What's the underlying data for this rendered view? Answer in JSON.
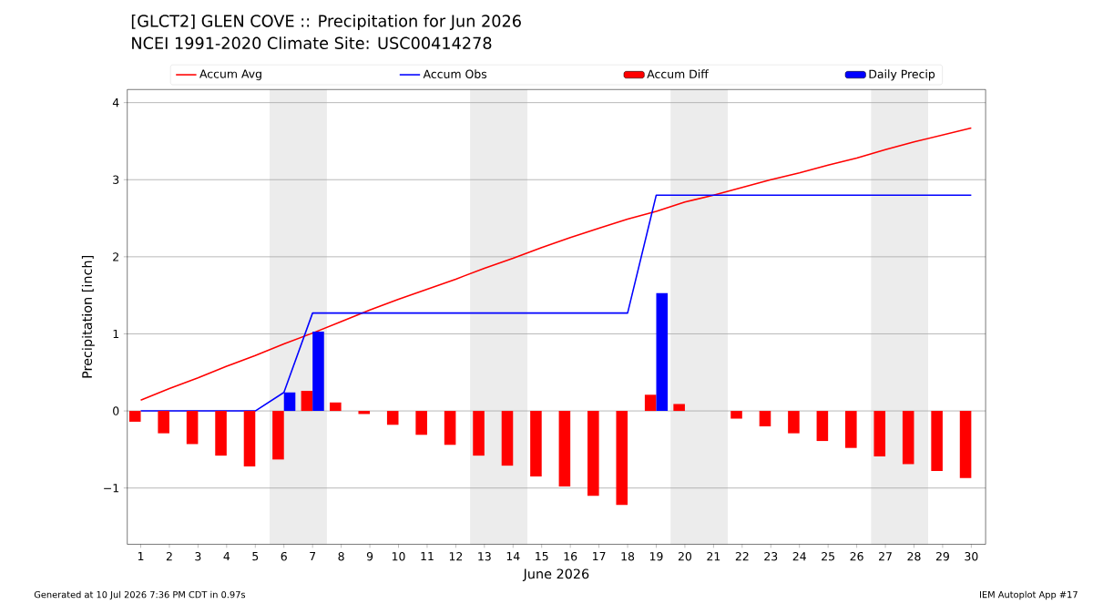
{
  "chart_data": {
    "type": "bar",
    "title": "[GLCT2] GLEN COVE :: Precipitation for Jun 2026",
    "subtitle": "NCEI 1991-2020 Climate Site: USC00414278",
    "xlabel": "June 2026",
    "ylabel": "Precipitation [inch]",
    "categories": [
      "1",
      "2",
      "3",
      "4",
      "5",
      "6",
      "7",
      "8",
      "9",
      "10",
      "11",
      "12",
      "13",
      "14",
      "15",
      "16",
      "17",
      "18",
      "19",
      "20",
      "21",
      "22",
      "23",
      "24",
      "25",
      "26",
      "27",
      "28",
      "29",
      "30"
    ],
    "series": [
      {
        "name": "Accum Avg",
        "type": "line",
        "color": "#ff0000",
        "values": [
          0.14,
          0.29,
          0.43,
          0.58,
          0.72,
          0.87,
          1.01,
          1.16,
          1.31,
          1.45,
          1.58,
          1.71,
          1.85,
          1.98,
          2.12,
          2.25,
          2.37,
          2.49,
          2.59,
          2.71,
          2.8,
          2.9,
          3.0,
          3.09,
          3.19,
          3.28,
          3.39,
          3.49,
          3.58,
          3.67
        ]
      },
      {
        "name": "Accum Obs",
        "type": "line",
        "color": "#0000ff",
        "values": [
          0,
          0,
          0,
          0,
          0,
          0.24,
          1.27,
          1.27,
          1.27,
          1.27,
          1.27,
          1.27,
          1.27,
          1.27,
          1.27,
          1.27,
          1.27,
          1.27,
          2.8,
          2.8,
          2.8,
          2.8,
          2.8,
          2.8,
          2.8,
          2.8,
          2.8,
          2.8,
          2.8,
          2.8
        ]
      },
      {
        "name": "Accum Diff",
        "color": "#ff0000",
        "values": [
          -0.14,
          -0.29,
          -0.43,
          -0.58,
          -0.72,
          -0.63,
          0.26,
          0.11,
          -0.04,
          -0.18,
          -0.31,
          -0.44,
          -0.58,
          -0.71,
          -0.85,
          -0.98,
          -1.1,
          -1.22,
          0.21,
          0.09,
          0,
          -0.1,
          -0.2,
          -0.29,
          -0.39,
          -0.48,
          -0.59,
          -0.69,
          -0.78,
          -0.87
        ]
      },
      {
        "name": "Daily Precip",
        "color": "#0000ff",
        "values": [
          0,
          0,
          0,
          0,
          0,
          0.24,
          1.03,
          0,
          0,
          0,
          0,
          0,
          0,
          0,
          0,
          0,
          0,
          0,
          1.53,
          0,
          0,
          0,
          0,
          0,
          0,
          0,
          0,
          0,
          0,
          0
        ]
      }
    ],
    "ylim": [
      -1.73,
      4.17
    ],
    "yticks": [
      {
        "value": -1,
        "label": "−1"
      },
      0,
      1,
      2,
      3,
      4
    ],
    "grid": "y",
    "legend": "top",
    "annotations": [
      "Generated at 10 Jul 2026 7:36 PM CDT in 0.97s",
      "IEM Autoplot App #17"
    ]
  }
}
